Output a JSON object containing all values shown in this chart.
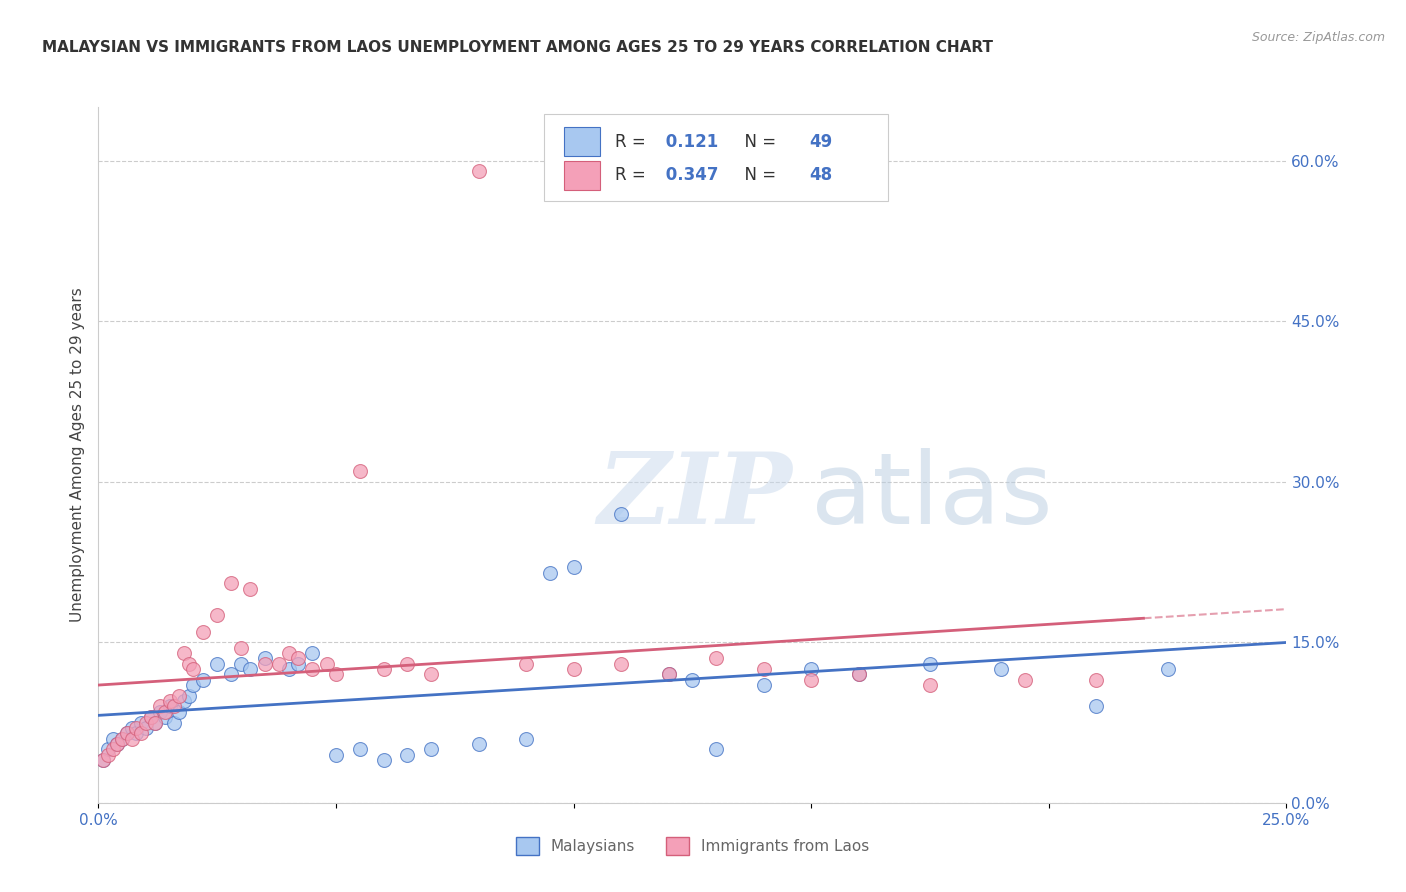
{
  "title": "MALAYSIAN VS IMMIGRANTS FROM LAOS UNEMPLOYMENT AMONG AGES 25 TO 29 YEARS CORRELATION CHART",
  "source": "Source: ZipAtlas.com",
  "ylabel_left": "Unemployment Among Ages 25 to 29 years",
  "x_min": 0.0,
  "x_max": 0.25,
  "y_min": 0.0,
  "y_max": 0.65,
  "right_yticks": [
    0.0,
    0.15,
    0.3,
    0.45,
    0.6
  ],
  "right_yticklabels": [
    "0.0%",
    "15.0%",
    "30.0%",
    "45.0%",
    "60.0%"
  ],
  "bottom_xticks": [
    0.0,
    0.05,
    0.1,
    0.15,
    0.2,
    0.25
  ],
  "bottom_xticklabels": [
    "0.0%",
    "",
    "",
    "",
    "",
    "25.0%"
  ],
  "series1_color": "#a8c8f0",
  "series2_color": "#f4a0b8",
  "series1_label": "Malaysians",
  "series2_label": "Immigrants from Laos",
  "R1": 0.121,
  "N1": 49,
  "R2": 0.347,
  "N2": 48,
  "trend1_color": "#4472c4",
  "trend2_color": "#d45f7a",
  "watermark": "ZIPatlas",
  "blue_points_x": [
    0.001,
    0.002,
    0.003,
    0.004,
    0.005,
    0.006,
    0.007,
    0.008,
    0.009,
    0.01,
    0.011,
    0.012,
    0.013,
    0.014,
    0.015,
    0.016,
    0.017,
    0.018,
    0.019,
    0.02,
    0.022,
    0.025,
    0.028,
    0.03,
    0.032,
    0.035,
    0.04,
    0.042,
    0.045,
    0.05,
    0.055,
    0.06,
    0.065,
    0.07,
    0.08,
    0.09,
    0.095,
    0.1,
    0.11,
    0.12,
    0.125,
    0.13,
    0.14,
    0.15,
    0.16,
    0.175,
    0.19,
    0.21,
    0.225
  ],
  "blue_points_y": [
    0.04,
    0.05,
    0.06,
    0.055,
    0.06,
    0.065,
    0.07,
    0.065,
    0.075,
    0.07,
    0.08,
    0.075,
    0.085,
    0.08,
    0.09,
    0.075,
    0.085,
    0.095,
    0.1,
    0.11,
    0.115,
    0.13,
    0.12,
    0.13,
    0.125,
    0.135,
    0.125,
    0.13,
    0.14,
    0.045,
    0.05,
    0.04,
    0.045,
    0.05,
    0.055,
    0.06,
    0.215,
    0.22,
    0.27,
    0.12,
    0.115,
    0.05,
    0.11,
    0.125,
    0.12,
    0.13,
    0.125,
    0.09,
    0.125
  ],
  "pink_points_x": [
    0.001,
    0.002,
    0.003,
    0.004,
    0.005,
    0.006,
    0.007,
    0.008,
    0.009,
    0.01,
    0.011,
    0.012,
    0.013,
    0.014,
    0.015,
    0.016,
    0.017,
    0.018,
    0.019,
    0.02,
    0.022,
    0.025,
    0.028,
    0.03,
    0.032,
    0.035,
    0.038,
    0.04,
    0.042,
    0.045,
    0.048,
    0.05,
    0.055,
    0.06,
    0.065,
    0.07,
    0.08,
    0.09,
    0.1,
    0.11,
    0.12,
    0.13,
    0.14,
    0.15,
    0.16,
    0.175,
    0.195,
    0.21
  ],
  "pink_points_y": [
    0.04,
    0.045,
    0.05,
    0.055,
    0.06,
    0.065,
    0.06,
    0.07,
    0.065,
    0.075,
    0.08,
    0.075,
    0.09,
    0.085,
    0.095,
    0.09,
    0.1,
    0.14,
    0.13,
    0.125,
    0.16,
    0.175,
    0.205,
    0.145,
    0.2,
    0.13,
    0.13,
    0.14,
    0.135,
    0.125,
    0.13,
    0.12,
    0.31,
    0.125,
    0.13,
    0.12,
    0.59,
    0.13,
    0.125,
    0.13,
    0.12,
    0.135,
    0.125,
    0.115,
    0.12,
    0.11,
    0.115,
    0.115
  ]
}
